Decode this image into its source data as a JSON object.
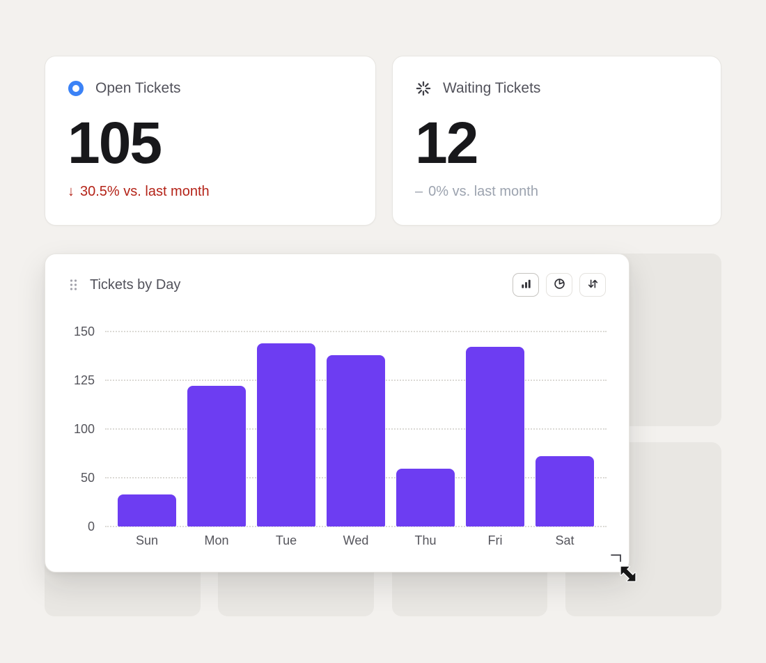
{
  "theme": {
    "bg": "#f3f1ee",
    "card_bg": "#ffffff",
    "card_border": "#e7e5e1",
    "placeholder_bg": "#e9e7e3",
    "accent_purple": "#6d3df2",
    "negative_red": "#b42318",
    "muted_gray": "#9ca3af",
    "title_gray": "#52525b",
    "number_color": "#18181b",
    "icon_blue": "#3b82f6"
  },
  "stats": [
    {
      "id": "open-tickets",
      "title": "Open Tickets",
      "value": "105",
      "delta_arrow": "↓",
      "delta": "30.5% vs. last month",
      "trend": "down"
    },
    {
      "id": "waiting-tickets",
      "title": "Waiting Tickets",
      "value": "12",
      "delta_arrow": "–",
      "delta": "0% vs. last month",
      "trend": "flat"
    }
  ],
  "chart_card": {
    "title": "Tickets by Day",
    "toolbar": [
      {
        "name": "bar-chart-view",
        "icon": "bar-chart-icon",
        "active": true
      },
      {
        "name": "pie-chart-view",
        "icon": "pie-chart-icon",
        "active": false
      },
      {
        "name": "sort-order",
        "icon": "sort-arrows-icon",
        "active": false
      }
    ]
  },
  "chart_data": {
    "type": "bar",
    "title": "Tickets by Day",
    "categories": [
      "Sun",
      "Mon",
      "Tue",
      "Wed",
      "Thu",
      "Fri",
      "Sat"
    ],
    "values": [
      33,
      122,
      144,
      138,
      59,
      142,
      72
    ],
    "y_ticks": [
      0,
      50,
      100,
      125,
      150
    ],
    "ylim": [
      0,
      150
    ],
    "xlabel": "",
    "ylabel": "",
    "bar_color": "#6d3df2",
    "grid": "dotted-horizontal",
    "legend": "none"
  },
  "icons": {
    "open_tickets": "ring-circle-icon",
    "waiting_tickets": "spinner-icon",
    "open_delta": "arrow-down-icon",
    "waiting_delta": "minus-icon",
    "drag_handle": "grip-dots-icon",
    "toolbar": [
      "bar-chart-icon",
      "pie-chart-icon",
      "sort-arrows-icon"
    ],
    "cursor": "resize-nwse-cursor-icon"
  }
}
